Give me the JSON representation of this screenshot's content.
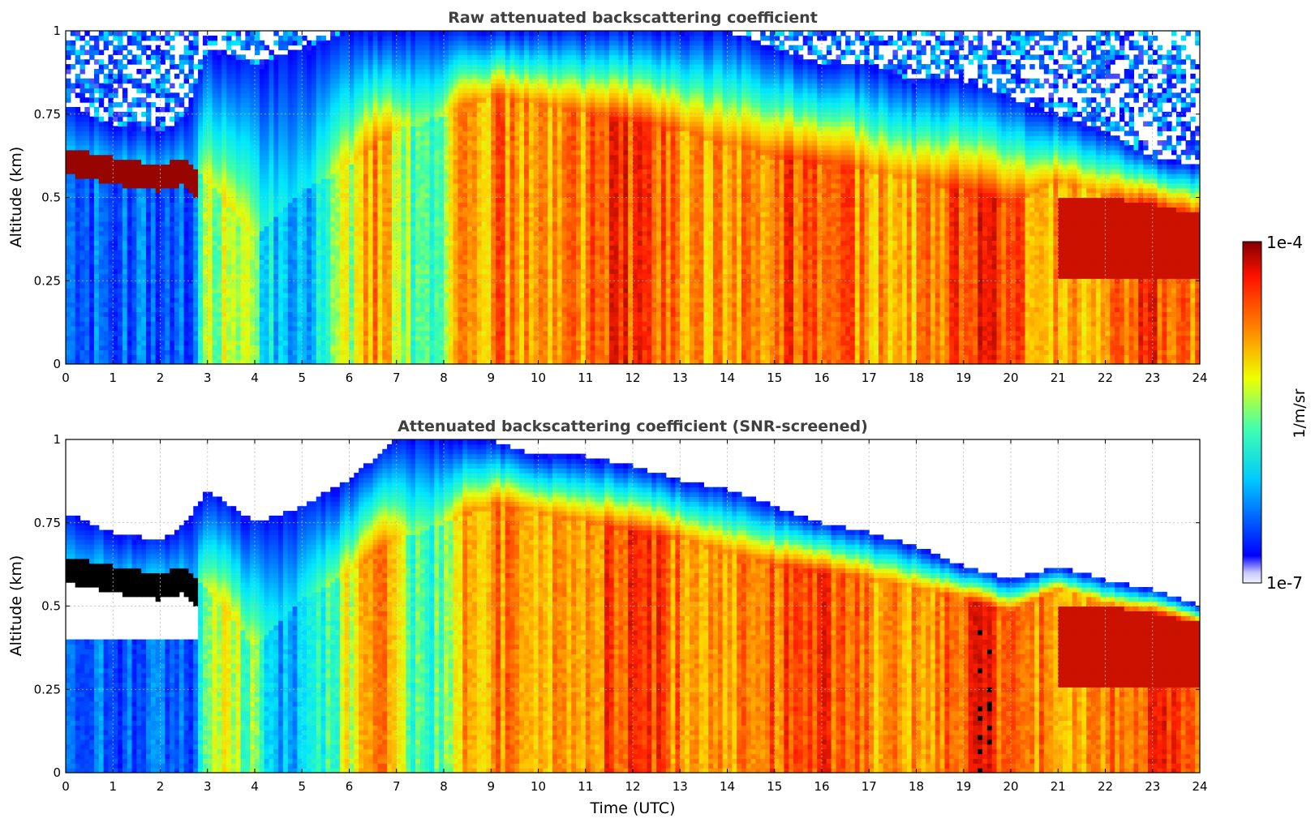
{
  "chart_data": [
    {
      "type": "heatmap",
      "title": "Raw attenuated backscattering coefficient",
      "xlabel": "",
      "ylabel": "Altitude (km)",
      "xlim": [
        0,
        24
      ],
      "ylim": [
        0,
        1
      ],
      "x_ticks": [
        "0",
        "1",
        "2",
        "3",
        "4",
        "5",
        "6",
        "7",
        "8",
        "9",
        "10",
        "11",
        "12",
        "13",
        "14",
        "15",
        "16",
        "17",
        "18",
        "19",
        "20",
        "21",
        "22",
        "23",
        "24"
      ],
      "y_ticks": [
        "0",
        "0.25",
        "0.5",
        "0.75",
        "1"
      ],
      "grid": true,
      "screened": false,
      "layers": {
        "hours": [
          0,
          1,
          2,
          2.5,
          3,
          4,
          5,
          6,
          7,
          8,
          9,
          10,
          11,
          12,
          13,
          14,
          15,
          16,
          17,
          18,
          19,
          20,
          21,
          22,
          23,
          24
        ],
        "boundary_layer_top_km": [
          0.65,
          0.62,
          0.6,
          0.62,
          0.55,
          0.38,
          0.52,
          0.6,
          0.7,
          0.75,
          0.8,
          0.78,
          0.75,
          0.72,
          0.7,
          0.66,
          0.62,
          0.6,
          0.58,
          0.55,
          0.52,
          0.48,
          0.55,
          0.5,
          0.48,
          0.45
        ],
        "signal_top_km": [
          0.78,
          0.72,
          0.7,
          0.74,
          0.95,
          0.9,
          0.95,
          1,
          1,
          1,
          1,
          1,
          1,
          1,
          1,
          1,
          0.95,
          0.9,
          0.9,
          0.85,
          0.85,
          0.8,
          0.75,
          0.7,
          0.62,
          0.6
        ]
      }
    },
    {
      "type": "heatmap",
      "title": "Attenuated backscattering coefficient (SNR-screened)",
      "xlabel": "Time (UTC)",
      "ylabel": "Altitude (km)",
      "xlim": [
        0,
        24
      ],
      "ylim": [
        0,
        1
      ],
      "x_ticks": [
        "0",
        "1",
        "2",
        "3",
        "4",
        "5",
        "6",
        "7",
        "8",
        "9",
        "10",
        "11",
        "12",
        "13",
        "14",
        "15",
        "16",
        "17",
        "18",
        "19",
        "20",
        "21",
        "22",
        "23",
        "24"
      ],
      "y_ticks": [
        "0",
        "0.25",
        "0.5",
        "0.75",
        "1"
      ],
      "grid": true,
      "screened": true,
      "layers": {
        "hours": [
          0,
          1,
          2,
          2.5,
          3,
          4,
          5,
          6,
          7,
          8,
          9,
          10,
          11,
          12,
          13,
          14,
          15,
          16,
          17,
          18,
          19,
          20,
          21,
          22,
          23,
          24
        ],
        "boundary_layer_top_km": [
          0.65,
          0.62,
          0.6,
          0.62,
          0.55,
          0.38,
          0.52,
          0.6,
          0.7,
          0.75,
          0.8,
          0.78,
          0.75,
          0.72,
          0.7,
          0.66,
          0.62,
          0.6,
          0.58,
          0.55,
          0.52,
          0.48,
          0.55,
          0.5,
          0.48,
          0.45
        ],
        "signal_top_km": [
          0.78,
          0.72,
          0.7,
          0.74,
          0.85,
          0.75,
          0.8,
          0.88,
          1,
          1,
          1,
          0.95,
          0.95,
          0.92,
          0.88,
          0.85,
          0.8,
          0.75,
          0.72,
          0.68,
          0.62,
          0.58,
          0.62,
          0.58,
          0.55,
          0.5
        ]
      }
    }
  ],
  "colorbar": {
    "max_label": "1e-4",
    "min_label": "1e-7",
    "unit_label": "1/m/sr",
    "colormap": "jet",
    "scale": "log"
  }
}
